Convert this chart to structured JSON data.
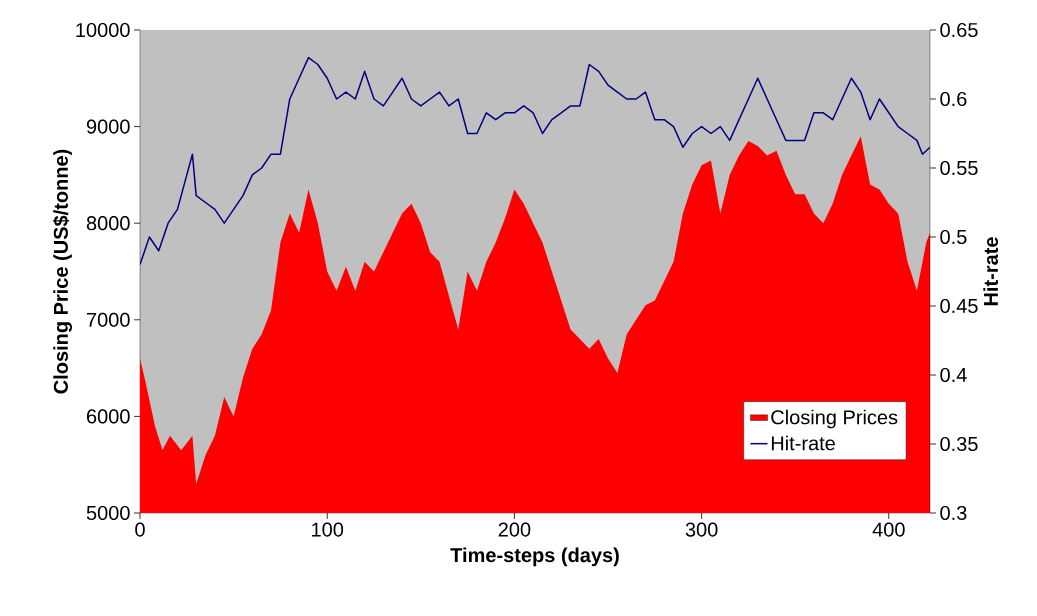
{
  "chart_data": {
    "type": "area",
    "xlabel": "Time-steps (days)",
    "ylabel": "Closing Price (US$/tonne)",
    "y2label": "Hit-rate",
    "xlim": [
      0,
      422
    ],
    "xticks": [
      0,
      100,
      200,
      300,
      400
    ],
    "ylim": [
      5000,
      10000
    ],
    "yticks": [
      5000,
      6000,
      7000,
      8000,
      9000,
      10000
    ],
    "y2lim": [
      0.3,
      0.65
    ],
    "y2ticks": [
      0.3,
      0.35,
      0.4,
      0.45,
      0.5,
      0.55,
      0.6,
      0.65
    ],
    "legend": "bottom right",
    "grid": false,
    "series": [
      {
        "name": "Closing Prices",
        "color": "#ff0000",
        "x": [
          0,
          3,
          8,
          12,
          16,
          22,
          28,
          30,
          35,
          40,
          45,
          50,
          55,
          60,
          65,
          70,
          75,
          80,
          85,
          90,
          95,
          100,
          105,
          110,
          115,
          120,
          125,
          130,
          135,
          140,
          145,
          150,
          155,
          160,
          165,
          170,
          175,
          180,
          185,
          190,
          195,
          200,
          205,
          210,
          215,
          220,
          225,
          230,
          235,
          240,
          245,
          250,
          255,
          260,
          265,
          270,
          275,
          280,
          285,
          290,
          295,
          300,
          305,
          310,
          315,
          320,
          325,
          330,
          335,
          340,
          345,
          350,
          355,
          360,
          365,
          370,
          375,
          380,
          385,
          390,
          395,
          400,
          405,
          410,
          415,
          420,
          422
        ],
        "values": [
          6600,
          6350,
          5900,
          5650,
          5800,
          5650,
          5800,
          5300,
          5600,
          5800,
          6200,
          6000,
          6400,
          6700,
          6850,
          7100,
          7800,
          8100,
          7900,
          8350,
          8000,
          7500,
          7300,
          7550,
          7300,
          7600,
          7500,
          7700,
          7900,
          8100,
          8200,
          8000,
          7700,
          7600,
          7250,
          6900,
          7500,
          7300,
          7600,
          7800,
          8050,
          8350,
          8200,
          8000,
          7800,
          7500,
          7200,
          6900,
          6800,
          6700,
          6800,
          6600,
          6450,
          6850,
          7000,
          7150,
          7200,
          7400,
          7600,
          8100,
          8400,
          8600,
          8650,
          8100,
          8500,
          8700,
          8850,
          8800,
          8700,
          8750,
          8500,
          8300,
          8300,
          8100,
          8000,
          8200,
          8500,
          8700,
          8900,
          8400,
          8350,
          8200,
          8100,
          7600,
          7300,
          7800,
          7900
        ]
      },
      {
        "name": "Hit-rate",
        "type": "line",
        "axis": "y2",
        "color": "#000080",
        "x": [
          0,
          5,
          10,
          15,
          20,
          25,
          28,
          30,
          35,
          40,
          45,
          50,
          55,
          60,
          65,
          70,
          75,
          80,
          85,
          90,
          95,
          100,
          105,
          110,
          115,
          120,
          125,
          130,
          135,
          140,
          145,
          150,
          155,
          160,
          165,
          170,
          175,
          180,
          185,
          190,
          195,
          200,
          205,
          210,
          215,
          220,
          225,
          230,
          235,
          240,
          245,
          250,
          255,
          260,
          265,
          270,
          275,
          280,
          285,
          290,
          295,
          300,
          305,
          310,
          315,
          320,
          325,
          330,
          335,
          340,
          345,
          350,
          355,
          360,
          365,
          370,
          375,
          380,
          385,
          390,
          395,
          400,
          405,
          410,
          415,
          418,
          422
        ],
        "values": [
          0.48,
          0.5,
          0.49,
          0.51,
          0.52,
          0.545,
          0.56,
          0.53,
          0.525,
          0.52,
          0.51,
          0.52,
          0.53,
          0.545,
          0.55,
          0.56,
          0.56,
          0.6,
          0.615,
          0.63,
          0.625,
          0.615,
          0.6,
          0.605,
          0.6,
          0.62,
          0.6,
          0.595,
          0.605,
          0.615,
          0.6,
          0.595,
          0.6,
          0.605,
          0.595,
          0.6,
          0.575,
          0.575,
          0.59,
          0.585,
          0.59,
          0.59,
          0.595,
          0.59,
          0.575,
          0.585,
          0.59,
          0.595,
          0.595,
          0.625,
          0.62,
          0.61,
          0.605,
          0.6,
          0.6,
          0.605,
          0.585,
          0.585,
          0.58,
          0.565,
          0.575,
          0.58,
          0.575,
          0.58,
          0.57,
          0.585,
          0.6,
          0.615,
          0.6,
          0.585,
          0.57,
          0.57,
          0.57,
          0.59,
          0.59,
          0.585,
          0.6,
          0.615,
          0.605,
          0.585,
          0.6,
          0.59,
          0.58,
          0.575,
          0.57,
          0.56,
          0.565
        ]
      }
    ]
  }
}
